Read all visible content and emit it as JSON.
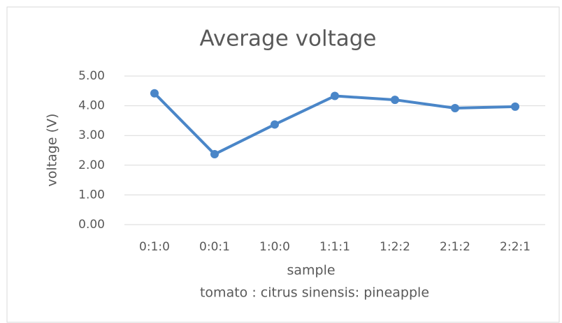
{
  "chart_data": {
    "type": "line",
    "title": "Average voltage",
    "x_label": "sample",
    "x_sublabel": "tomato : citrus sinensis: pineapple",
    "y_label": "voltage (V)",
    "categories": [
      "0:1:0",
      "0:0:1",
      "1:0:0",
      "1:1:1",
      "1:2:2",
      "2:1:2",
      "2:2:1"
    ],
    "series": [
      {
        "name": "Average voltage",
        "color": "#4a86c8",
        "values": [
          4.42,
          2.37,
          3.37,
          4.33,
          4.2,
          3.92,
          3.97
        ]
      }
    ],
    "ylim": [
      0,
      5
    ],
    "yticks": [
      {
        "value": 0,
        "label": "0.00"
      },
      {
        "value": 1,
        "label": "1.00"
      },
      {
        "value": 2,
        "label": "2.00"
      },
      {
        "value": 3,
        "label": "3.00"
      },
      {
        "value": 4,
        "label": "4.00"
      },
      {
        "value": 5,
        "label": "5.00"
      }
    ],
    "grid": true
  }
}
